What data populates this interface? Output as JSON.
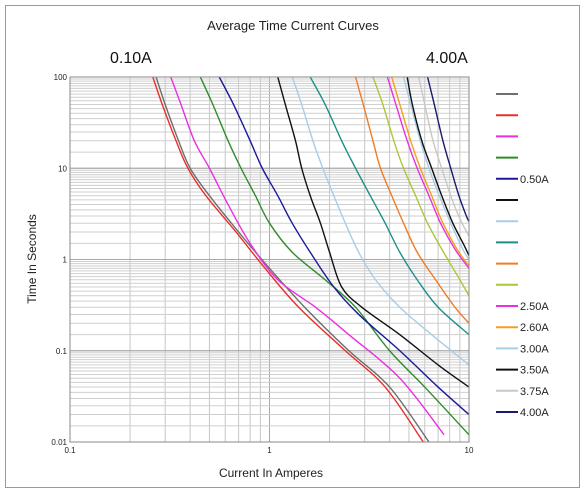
{
  "chart_data": {
    "type": "line",
    "title": "Average Time Current Curves",
    "left_label": "0.10A",
    "right_label": "4.00A",
    "xlabel": "Current In Amperes",
    "ylabel": "Time In Seconds",
    "x_scale": "log",
    "y_scale": "log",
    "xlim": [
      0.1,
      10
    ],
    "ylim": [
      0.01,
      100
    ],
    "x_ticks": [
      {
        "value": 0.1,
        "label": "0.1"
      },
      {
        "value": 1,
        "label": "1"
      },
      {
        "value": 10,
        "label": "10"
      }
    ],
    "y_ticks": [
      {
        "value": 100,
        "label": "100"
      },
      {
        "value": 10,
        "label": "10"
      },
      {
        "value": 1,
        "label": "1"
      },
      {
        "value": 0.1,
        "label": "0.1"
      },
      {
        "value": 0.01,
        "label": "0.01"
      }
    ],
    "grid": true,
    "legend_position": "right",
    "series": [
      {
        "label": "",
        "color": "#6e6e6e",
        "points": [
          [
            0.27,
            100
          ],
          [
            0.3,
            50
          ],
          [
            0.35,
            20
          ],
          [
            0.4,
            10
          ],
          [
            0.5,
            5
          ],
          [
            0.7,
            2
          ],
          [
            1.0,
            0.8
          ],
          [
            1.5,
            0.3
          ],
          [
            2.5,
            0.1
          ],
          [
            4,
            0.04
          ],
          [
            6.3,
            0.01
          ]
        ]
      },
      {
        "label": "",
        "color": "#e8302a",
        "points": [
          [
            0.26,
            100
          ],
          [
            0.29,
            50
          ],
          [
            0.34,
            20
          ],
          [
            0.39,
            10
          ],
          [
            0.48,
            5
          ],
          [
            0.68,
            2
          ],
          [
            0.95,
            0.8
          ],
          [
            1.4,
            0.3
          ],
          [
            2.4,
            0.1
          ],
          [
            3.8,
            0.04
          ],
          [
            5.9,
            0.01
          ]
        ]
      },
      {
        "label": "",
        "color": "#ea2fe0",
        "points": [
          [
            0.32,
            100
          ],
          [
            0.36,
            50
          ],
          [
            0.42,
            20
          ],
          [
            0.5,
            10
          ],
          [
            0.62,
            4
          ],
          [
            0.8,
            1.5
          ],
          [
            1.1,
            0.6
          ],
          [
            1.7,
            0.3
          ],
          [
            2.5,
            0.15
          ],
          [
            4.5,
            0.05
          ],
          [
            7.5,
            0.012
          ]
        ]
      },
      {
        "label": "",
        "color": "#2f8c2a",
        "points": [
          [
            0.45,
            100
          ],
          [
            0.52,
            50
          ],
          [
            0.62,
            20
          ],
          [
            0.72,
            10
          ],
          [
            0.85,
            5
          ],
          [
            1.0,
            2.5
          ],
          [
            1.3,
            1.2
          ],
          [
            1.9,
            0.6
          ],
          [
            2.7,
            0.3
          ],
          [
            4,
            0.1
          ],
          [
            6,
            0.04
          ],
          [
            10,
            0.012
          ]
        ]
      },
      {
        "label": "0.50A",
        "color": "#1a1a9a",
        "points": [
          [
            0.56,
            100
          ],
          [
            0.66,
            50
          ],
          [
            0.8,
            20
          ],
          [
            0.92,
            10
          ],
          [
            1.1,
            5
          ],
          [
            1.3,
            2.5
          ],
          [
            1.6,
            1.2
          ],
          [
            2.1,
            0.5
          ],
          [
            2.8,
            0.25
          ],
          [
            4.5,
            0.1
          ],
          [
            7,
            0.04
          ],
          [
            10,
            0.02
          ]
        ]
      },
      {
        "label": "",
        "color": "#111111",
        "points": [
          [
            1.1,
            100
          ],
          [
            1.2,
            50
          ],
          [
            1.35,
            20
          ],
          [
            1.45,
            10
          ],
          [
            1.6,
            5
          ],
          [
            1.8,
            2.5
          ],
          [
            2.0,
            1.2
          ],
          [
            2.3,
            0.5
          ],
          [
            2.9,
            0.3
          ],
          [
            4.5,
            0.15
          ],
          [
            7,
            0.07
          ],
          [
            10,
            0.04
          ]
        ]
      },
      {
        "label": "",
        "color": "#a8cde6",
        "points": [
          [
            1.3,
            100
          ],
          [
            1.45,
            50
          ],
          [
            1.65,
            20
          ],
          [
            1.85,
            10
          ],
          [
            2.1,
            5
          ],
          [
            2.4,
            2.5
          ],
          [
            2.8,
            1.2
          ],
          [
            3.4,
            0.6
          ],
          [
            4.5,
            0.3
          ],
          [
            6.5,
            0.15
          ],
          [
            10,
            0.07
          ]
        ]
      },
      {
        "label": "",
        "color": "#1f8f8a",
        "points": [
          [
            1.6,
            100
          ],
          [
            1.9,
            50
          ],
          [
            2.3,
            20
          ],
          [
            2.7,
            10
          ],
          [
            3.2,
            5
          ],
          [
            3.8,
            2.5
          ],
          [
            4.5,
            1.2
          ],
          [
            5.5,
            0.6
          ],
          [
            7,
            0.3
          ],
          [
            10,
            0.15
          ]
        ]
      },
      {
        "label": "",
        "color": "#f07c22",
        "points": [
          [
            2.7,
            100
          ],
          [
            2.95,
            50
          ],
          [
            3.3,
            20
          ],
          [
            3.6,
            10
          ],
          [
            4.1,
            5
          ],
          [
            4.7,
            2.5
          ],
          [
            5.5,
            1.2
          ],
          [
            6.8,
            0.6
          ],
          [
            8.5,
            0.3
          ],
          [
            10,
            0.2
          ]
        ]
      },
      {
        "label": "",
        "color": "#a8c83a",
        "points": [
          [
            3.3,
            100
          ],
          [
            3.7,
            50
          ],
          [
            4.2,
            20
          ],
          [
            4.7,
            10
          ],
          [
            5.4,
            5
          ],
          [
            6.2,
            2.5
          ],
          [
            7.3,
            1.3
          ],
          [
            9,
            0.6
          ],
          [
            10,
            0.4
          ]
        ]
      },
      {
        "label": "2.50A",
        "color": "#ea2fe0",
        "points": [
          [
            3.9,
            100
          ],
          [
            4.3,
            50
          ],
          [
            4.9,
            20
          ],
          [
            5.5,
            10
          ],
          [
            6.3,
            5
          ],
          [
            7.2,
            2.5
          ],
          [
            8.5,
            1.3
          ],
          [
            10,
            0.8
          ]
        ]
      },
      {
        "label": "2.60A",
        "color": "#f3a020",
        "points": [
          [
            4.1,
            100
          ],
          [
            4.5,
            50
          ],
          [
            5.1,
            20
          ],
          [
            5.7,
            10
          ],
          [
            6.5,
            5
          ],
          [
            7.4,
            2.5
          ],
          [
            8.7,
            1.3
          ],
          [
            10,
            0.85
          ]
        ]
      },
      {
        "label": "3.00A",
        "color": "#a8cde6",
        "points": [
          [
            4.7,
            100
          ],
          [
            5.1,
            50
          ],
          [
            5.7,
            20
          ],
          [
            6.3,
            10
          ],
          [
            7.1,
            5
          ],
          [
            8.1,
            2.5
          ],
          [
            9.3,
            1.3
          ],
          [
            10,
            1.0
          ]
        ]
      },
      {
        "label": "3.50A",
        "color": "#111111",
        "points": [
          [
            4.9,
            100
          ],
          [
            5.2,
            50
          ],
          [
            5.8,
            20
          ],
          [
            6.5,
            10
          ],
          [
            7.3,
            5
          ],
          [
            8.3,
            2.5
          ],
          [
            9.5,
            1.4
          ],
          [
            10,
            1.1
          ]
        ]
      },
      {
        "label": "3.75A",
        "color": "#c8c8c8",
        "points": [
          [
            5.6,
            100
          ],
          [
            6.0,
            50
          ],
          [
            6.6,
            20
          ],
          [
            7.3,
            10
          ],
          [
            8.1,
            5
          ],
          [
            9.0,
            2.8
          ],
          [
            10,
            1.8
          ]
        ]
      },
      {
        "label": "4.00A",
        "color": "#1a1a70",
        "points": [
          [
            6.2,
            100
          ],
          [
            6.7,
            50
          ],
          [
            7.4,
            20
          ],
          [
            8.1,
            10
          ],
          [
            8.9,
            5
          ],
          [
            9.7,
            3.0
          ],
          [
            10,
            2.6
          ]
        ]
      }
    ]
  }
}
